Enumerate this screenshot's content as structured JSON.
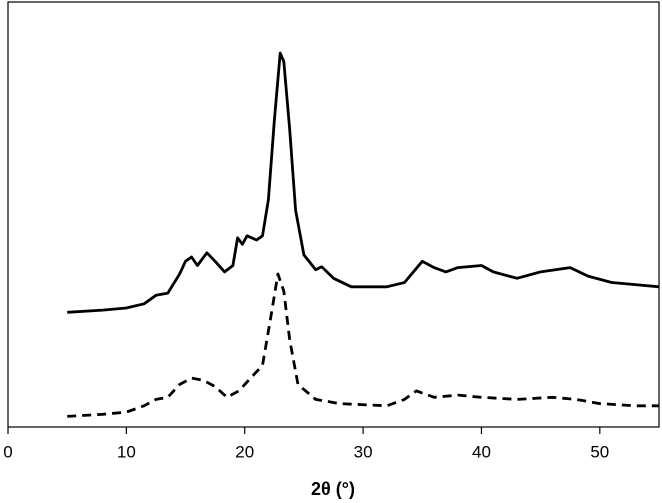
{
  "chart_data": {
    "type": "line",
    "x_label": "2θ (°)",
    "xlim": [
      0,
      55
    ],
    "xticks": [
      0,
      10,
      20,
      30,
      40,
      50
    ],
    "ylim": [
      0,
      100
    ],
    "series": [
      {
        "color": "#000000",
        "dash": false,
        "x": [
          5,
          8,
          10,
          11.5,
          12.5,
          13.5,
          14.5,
          15,
          15.5,
          16,
          16.8,
          17.5,
          18.3,
          19,
          19.4,
          19.8,
          20.2,
          21,
          21.5,
          22,
          22.5,
          23,
          23.3,
          23.8,
          24.3,
          25,
          26,
          26.5,
          27.5,
          29,
          32,
          33.5,
          35,
          36,
          37,
          38,
          40,
          41,
          43,
          45,
          47.5,
          49,
          51,
          53,
          55
        ],
        "values": [
          27,
          27.5,
          28,
          29,
          31,
          31.5,
          36,
          39,
          40,
          38,
          41,
          39,
          36.5,
          38,
          44.5,
          43,
          45,
          44,
          45,
          53.5,
          72,
          88,
          86,
          70,
          51,
          40.5,
          37,
          37.7,
          35,
          33,
          33,
          34,
          39,
          37.5,
          36.5,
          37.5,
          38,
          36.5,
          35,
          36.5,
          37.5,
          35.5,
          34,
          33.5,
          33
        ]
      },
      {
        "color": "#000000",
        "dash": true,
        "x": [
          5,
          8,
          10,
          11.5,
          12.5,
          13.5,
          14.5,
          15.5,
          16.5,
          17.5,
          18.5,
          19.5,
          20.5,
          21.5,
          22.3,
          22.8,
          23.3,
          23.8,
          24.5,
          26,
          28,
          32,
          33.5,
          34.5,
          36,
          38,
          40,
          43,
          46,
          48,
          50,
          53,
          55
        ],
        "values": [
          2.5,
          3,
          3.5,
          5,
          6.5,
          7,
          10,
          11.5,
          11,
          9.5,
          7,
          8.5,
          11.5,
          14.5,
          27.5,
          36,
          32,
          20.5,
          10,
          6.5,
          5.5,
          5,
          6.5,
          8.5,
          7,
          7.5,
          7,
          6.5,
          7,
          6.5,
          5.5,
          5,
          5
        ]
      }
    ]
  }
}
